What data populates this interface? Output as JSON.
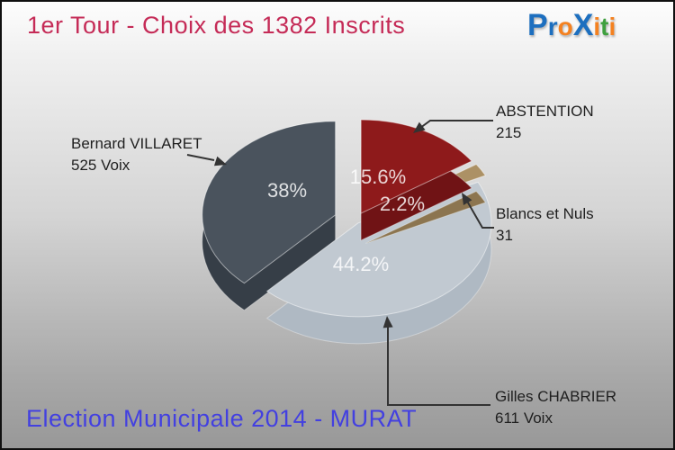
{
  "header": {
    "title": "1er Tour - Choix des 1382 Inscrits"
  },
  "logo": {
    "name": "Proxiti",
    "letters": [
      {
        "text": "P",
        "color": "#1d6fbf",
        "big": true
      },
      {
        "text": "r",
        "color": "#1d6fbf",
        "big": false
      },
      {
        "text": "o",
        "color": "#f48120",
        "big": false
      },
      {
        "text": "X",
        "color": "#1d6fbf",
        "big": true
      },
      {
        "text": "i",
        "color": "#f48120",
        "big": false
      },
      {
        "text": "t",
        "color": "#3fa03f",
        "big": false
      },
      {
        "text": "i",
        "color": "#f48120",
        "big": false
      }
    ]
  },
  "chart_data": {
    "type": "pie",
    "style": "3d-exploded",
    "title": "1er Tour - Choix des 1382 Inscrits",
    "total": 1382,
    "total_label": "1382 Inscrits",
    "start_angle_deg": -90,
    "direction": "clockwise",
    "legend_position": "callouts",
    "slices": [
      {
        "label": "ABSTENTION",
        "value": 215,
        "value_label": "215",
        "pct": 15.6,
        "pct_label": "15.6%",
        "color": "#8e1a1b",
        "side_color": "#701315"
      },
      {
        "label": "Blancs et Nuls",
        "value": 31,
        "value_label": "31",
        "pct": 2.2,
        "pct_label": "2.2%",
        "color": "#ac9165",
        "side_color": "#8c7550"
      },
      {
        "label": "Gilles CHABRIER",
        "value": 611,
        "value_label": "611 Voix",
        "pct": 44.2,
        "pct_label": "44.2%",
        "color": "#c1c9d1",
        "side_color": "#afb9c3"
      },
      {
        "label": "Bernard VILLARET",
        "value": 525,
        "value_label": "525 Voix",
        "pct": 38.0,
        "pct_label": "38%",
        "color": "#4a535d",
        "side_color": "#363e47"
      }
    ]
  },
  "footer": {
    "caption": "Election Municipale 2014 - MURAT"
  },
  "colors": {
    "title": "#c52b57",
    "footer": "#4340e0",
    "label_text": "#1f1f1f",
    "pct_text": "#ffffff",
    "arrow": "#333333",
    "bg_top": "#fdfdfd",
    "bg_bottom": "#979797"
  }
}
